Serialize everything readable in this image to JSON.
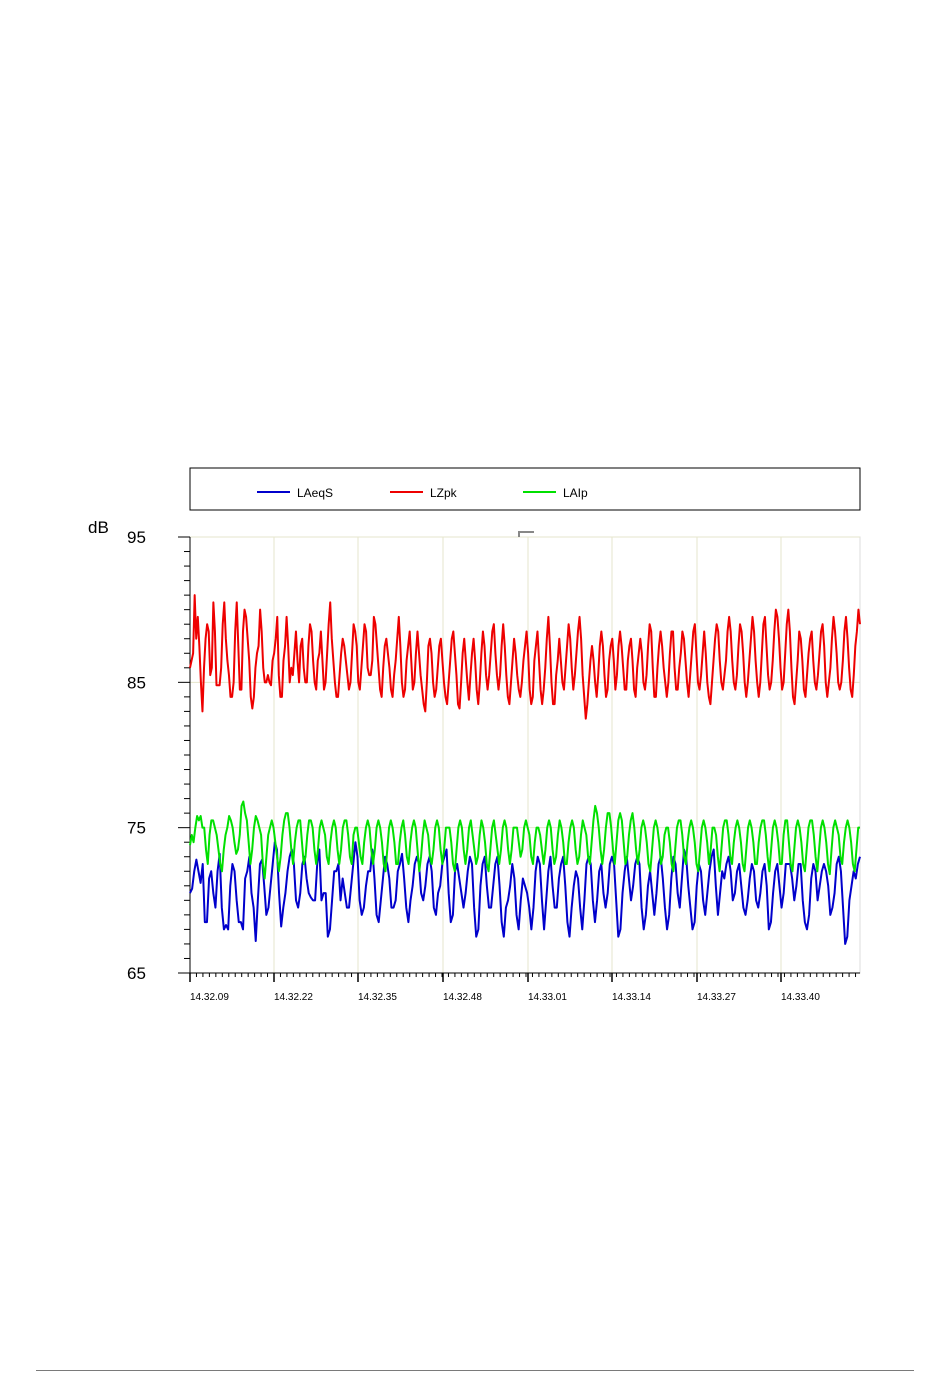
{
  "chart_data": {
    "type": "line",
    "ylabel": "dB",
    "ylim": [
      65,
      95
    ],
    "yticks": [
      "95",
      "85",
      "75",
      "65"
    ],
    "x_ticks": [
      "14.32.09",
      "14.32.22",
      "14.32.35",
      "14.32.48",
      "14.33.01",
      "14.33.14",
      "14.33.27",
      "14.33.40"
    ],
    "x_start": "14.32.09",
    "x_end": "14.33.51",
    "grid": true,
    "legend_position": "top",
    "series": [
      {
        "name": "LAeqS",
        "color": "#0000cc",
        "values": [
          70.5,
          70.8,
          72.0,
          72.8,
          72.0,
          71.2,
          72.5,
          68.5,
          68.5,
          71.5,
          72.0,
          70.5,
          69.5,
          72.0,
          73.2,
          69.5,
          68.0,
          68.3,
          68.0,
          71.0,
          72.5,
          72.0,
          70.0,
          68.5,
          68.5,
          68.0,
          71.5,
          72.0,
          73.0,
          70.5,
          69.5,
          67.2,
          70.0,
          72.5,
          72.8,
          71.0,
          69.0,
          69.5,
          71.0,
          72.5,
          74.0,
          73.5,
          70.5,
          68.2,
          69.5,
          70.5,
          72.0,
          73.0,
          73.5,
          72.5,
          70.0,
          69.5,
          70.5,
          72.5,
          73.0,
          71.5,
          70.5,
          70.2,
          70.0,
          70.0,
          72.5,
          73.5,
          70.0,
          70.5,
          70.5,
          67.5,
          68.0,
          70.0,
          72.0,
          72.0,
          72.5,
          70.0,
          71.5,
          70.5,
          69.5,
          69.5,
          71.0,
          72.5,
          74.0,
          73.0,
          70.0,
          69.0,
          69.5,
          71.0,
          72.0,
          72.0,
          73.5,
          71.5,
          69.0,
          68.5,
          70.0,
          71.5,
          73.0,
          72.5,
          71.5,
          69.5,
          69.5,
          70.0,
          72.0,
          72.5,
          73.2,
          71.5,
          69.5,
          68.5,
          70.0,
          71.0,
          72.5,
          73.0,
          72.5,
          70.5,
          70.0,
          71.0,
          72.5,
          73.0,
          72.0,
          69.5,
          69.0,
          70.5,
          71.0,
          72.5,
          73.0,
          73.5,
          70.5,
          68.5,
          69.0,
          72.0,
          72.5,
          71.5,
          70.5,
          69.5,
          70.5,
          72.0,
          73.0,
          72.5,
          69.5,
          67.5,
          68.0,
          71.0,
          72.5,
          73.0,
          71.0,
          69.5,
          69.5,
          71.0,
          72.5,
          73.0,
          71.0,
          68.5,
          67.5,
          69.5,
          70.0,
          71.0,
          72.5,
          71.5,
          69.0,
          68.0,
          70.0,
          71.5,
          71.0,
          70.5,
          69.5,
          68.0,
          69.5,
          72.0,
          73.0,
          72.5,
          70.0,
          68.0,
          70.0,
          72.0,
          73.0,
          71.0,
          69.5,
          69.5,
          71.5,
          72.5,
          73.0,
          71.0,
          68.5,
          67.5,
          69.5,
          71.0,
          72.0,
          71.5,
          69.5,
          68.0,
          70.0,
          72.5,
          73.0,
          72.5,
          70.0,
          68.5,
          70.0,
          72.0,
          72.5,
          70.5,
          69.5,
          70.5,
          72.5,
          73.0,
          72.5,
          70.0,
          67.5,
          68.0,
          70.5,
          72.0,
          73.0,
          71.5,
          70.0,
          71.0,
          72.5,
          73.0,
          72.5,
          69.5,
          68.0,
          69.0,
          71.0,
          72.0,
          70.5,
          69.0,
          70.5,
          72.5,
          73.0,
          71.5,
          69.5,
          68.0,
          69.0,
          71.5,
          73.0,
          72.5,
          70.5,
          69.5,
          71.5,
          73.5,
          73.0,
          71.0,
          69.5,
          68.0,
          68.5,
          71.0,
          72.5,
          72.0,
          70.0,
          69.0,
          70.5,
          72.0,
          73.0,
          73.5,
          71.0,
          69.0,
          70.5,
          72.0,
          71.5,
          72.5,
          73.0,
          72.0,
          70.0,
          70.5,
          72.0,
          72.5,
          71.0,
          69.5,
          69.0,
          70.0,
          71.5,
          72.5,
          72.0,
          70.0,
          69.5,
          70.5,
          72.0,
          72.5,
          71.0,
          68.0,
          68.5,
          70.5,
          72.0,
          72.5,
          71.0,
          69.5,
          70.5,
          72.5,
          72.5,
          72.5,
          71.5,
          70.0,
          71.0,
          72.5,
          72.5,
          70.0,
          68.5,
          68.0,
          69.0,
          71.5,
          72.5,
          72.0,
          70.0,
          71.0,
          72.0,
          72.5,
          72.0,
          71.0,
          69.0,
          69.5,
          70.5,
          72.5,
          73.0,
          72.0,
          69.5,
          67.0,
          67.5,
          70.0,
          71.0,
          72.0,
          71.5,
          72.5,
          73.0
        ]
      },
      {
        "name": "LZpk",
        "color": "#ee0000",
        "values": [
          86.0,
          86.5,
          87.0,
          91.0,
          88.0,
          89.5,
          87.5,
          85.0,
          83.0,
          86.0,
          88.0,
          89.0,
          88.5,
          85.5,
          86.0,
          90.5,
          88.5,
          84.8,
          84.8,
          84.8,
          86.0,
          89.0,
          90.5,
          88.0,
          86.5,
          85.5,
          84.0,
          84.0,
          85.0,
          88.5,
          90.5,
          87.5,
          84.5,
          84.5,
          88.5,
          90.0,
          89.5,
          88.0,
          86.5,
          84.0,
          83.2,
          84.0,
          86.0,
          87.0,
          87.5,
          90.0,
          88.5,
          86.0,
          85.0,
          85.0,
          85.5,
          85.0,
          84.8,
          86.5,
          87.0,
          88.0,
          89.5,
          85.5,
          84.0,
          84.0,
          86.5,
          87.5,
          89.5,
          87.5,
          85.0,
          86.0,
          85.5,
          87.0,
          88.5,
          86.5,
          85.0,
          87.5,
          88.0,
          86.0,
          85.0,
          85.0,
          87.5,
          89.0,
          88.5,
          86.5,
          85.0,
          84.5,
          86.5,
          87.0,
          88.5,
          86.5,
          84.5,
          85.0,
          87.0,
          89.0,
          90.5,
          88.0,
          86.5,
          85.0,
          84.0,
          84.0,
          85.5,
          87.0,
          88.0,
          87.5,
          86.5,
          85.5,
          84.5,
          85.0,
          87.0,
          89.0,
          88.5,
          87.5,
          85.0,
          84.5,
          86.0,
          87.5,
          89.0,
          88.5,
          86.0,
          85.5,
          85.5,
          86.5,
          89.5,
          89.0,
          87.5,
          86.0,
          84.5,
          84.0,
          86.0,
          87.5,
          88.0,
          87.0,
          86.0,
          84.5,
          84.0,
          85.5,
          86.5,
          88.0,
          89.5,
          87.5,
          85.0,
          84.0,
          84.5,
          86.5,
          87.5,
          88.5,
          86.5,
          84.5,
          85.0,
          87.0,
          88.5,
          87.0,
          85.5,
          84.5,
          83.5,
          83.0,
          85.0,
          87.5,
          88.0,
          87.0,
          85.0,
          84.0,
          84.5,
          86.0,
          87.5,
          88.0,
          86.5,
          85.0,
          84.0,
          83.5,
          85.0,
          86.5,
          88.0,
          88.5,
          87.0,
          85.5,
          83.5,
          83.2,
          85.0,
          87.0,
          88.0,
          86.5,
          85.0,
          83.8,
          85.5,
          87.0,
          88.0,
          86.5,
          84.5,
          83.5,
          85.0,
          87.0,
          88.5,
          87.5,
          85.5,
          84.5,
          85.5,
          87.0,
          88.5,
          89.0,
          87.0,
          85.5,
          84.5,
          85.5,
          87.5,
          89.0,
          87.5,
          85.5,
          84.0,
          83.5,
          85.0,
          86.5,
          88.0,
          87.0,
          85.5,
          84.5,
          84.0,
          85.0,
          86.5,
          87.5,
          88.5,
          87.0,
          84.5,
          83.5,
          84.0,
          86.5,
          87.5,
          88.5,
          86.5,
          84.5,
          83.5,
          84.5,
          86.0,
          88.0,
          89.5,
          87.5,
          85.0,
          83.5,
          83.5,
          85.5,
          86.5,
          88.0,
          86.5,
          85.0,
          84.5,
          86.0,
          87.5,
          89.0,
          88.0,
          86.0,
          84.5,
          85.5,
          87.0,
          88.5,
          89.5,
          88.0,
          85.5,
          84.0,
          82.5,
          83.5,
          85.0,
          86.5,
          87.5,
          86.5,
          85.0,
          84.0,
          85.5,
          87.5,
          88.5,
          87.5,
          85.5,
          84.0,
          84.5,
          86.5,
          87.5,
          88.0,
          86.5,
          84.5,
          85.5,
          87.5,
          88.5,
          87.5,
          86.0,
          84.5,
          84.5,
          86.5,
          87.5,
          88.0,
          86.5,
          84.5,
          84.0,
          86.0,
          87.0,
          88.0,
          87.0,
          85.0,
          84.5,
          85.5,
          87.5,
          89.0,
          88.5,
          86.0,
          84.0,
          84.0,
          86.0,
          87.5,
          88.5,
          87.5,
          86.0,
          85.0,
          84.0,
          85.0,
          87.0,
          88.5,
          88.5,
          86.0,
          84.5,
          84.5,
          86.0,
          87.0,
          88.5,
          88.0,
          86.5,
          85.0,
          84.0,
          85.5,
          87.0,
          88.5,
          89.0,
          87.0,
          85.0,
          84.5,
          85.5,
          87.0,
          88.5,
          87.0,
          85.0,
          84.0,
          83.5,
          85.0,
          86.5,
          88.0,
          89.0,
          88.5,
          86.5,
          85.0,
          84.5,
          85.5,
          86.5,
          88.5,
          89.5,
          88.5,
          86.5,
          85.0,
          84.5,
          85.5,
          87.5,
          89.0,
          88.5,
          87.0,
          85.0,
          84.0,
          85.0,
          86.5,
          88.0,
          89.5,
          88.5,
          86.5,
          85.0,
          84.0,
          85.0,
          87.0,
          89.0,
          89.5,
          87.5,
          85.5,
          84.5,
          85.0,
          86.5,
          88.5,
          90.0,
          89.5,
          88.0,
          86.0,
          84.5,
          85.0,
          87.0,
          89.0,
          90.0,
          88.5,
          86.0,
          84.0,
          83.5,
          85.0,
          86.5,
          88.5,
          88.0,
          86.5,
          84.5,
          84.0,
          85.5,
          87.0,
          88.0,
          88.5,
          86.5,
          85.0,
          84.5,
          85.5,
          87.0,
          88.5,
          89.0,
          87.5,
          85.0,
          84.0,
          85.0,
          86.0,
          88.0,
          89.5,
          88.5,
          87.0,
          85.0,
          84.5,
          85.0,
          86.5,
          88.5,
          89.5,
          88.0,
          86.0,
          84.5,
          84.0,
          85.5,
          87.5,
          88.5,
          90.0,
          89.0
        ]
      },
      {
        "name": "LAIp",
        "color": "#00e000",
        "values": [
          73.8,
          74.5,
          74.0,
          75.0,
          75.8,
          75.5,
          75.8,
          75.0,
          75.0,
          73.5,
          72.5,
          74.5,
          75.5,
          75.5,
          75.0,
          74.5,
          73.5,
          72.5,
          72.0,
          73.5,
          74.5,
          75.0,
          75.8,
          75.5,
          75.0,
          74.0,
          73.2,
          73.5,
          74.5,
          76.5,
          76.8,
          76.0,
          75.5,
          74.0,
          72.5,
          73.5,
          75.0,
          75.8,
          75.5,
          75.0,
          74.5,
          72.5,
          71.5,
          73.0,
          74.5,
          75.0,
          75.5,
          75.0,
          74.0,
          73.0,
          72.0,
          73.0,
          74.5,
          75.5,
          76.0,
          76.0,
          75.0,
          73.5,
          72.5,
          74.0,
          75.0,
          75.5,
          75.5,
          74.0,
          72.5,
          73.0,
          74.5,
          75.5,
          75.5,
          75.0,
          73.5,
          72.5,
          73.5,
          75.0,
          75.5,
          75.0,
          74.5,
          73.0,
          72.5,
          74.0,
          75.0,
          75.5,
          75.0,
          73.5,
          72.5,
          73.5,
          75.0,
          75.5,
          75.5,
          74.5,
          73.0,
          72.5,
          74.5,
          75.0,
          75.0,
          74.0,
          73.0,
          72.5,
          74.0,
          75.0,
          75.5,
          75.0,
          73.5,
          72.5,
          73.5,
          75.0,
          75.5,
          75.0,
          74.0,
          72.5,
          72.0,
          73.5,
          75.0,
          75.5,
          75.0,
          74.0,
          72.5,
          72.5,
          74.0,
          75.0,
          75.5,
          74.5,
          73.0,
          72.5,
          74.0,
          75.0,
          75.5,
          75.0,
          73.5,
          72.0,
          73.0,
          74.5,
          75.5,
          75.0,
          74.5,
          73.0,
          72.5,
          73.5,
          75.0,
          75.5,
          75.0,
          73.5,
          72.5,
          73.5,
          75.0,
          75.0,
          75.0,
          74.0,
          72.5,
          72.0,
          73.5,
          75.0,
          75.5,
          75.0,
          73.5,
          72.5,
          73.5,
          75.0,
          75.5,
          74.5,
          73.5,
          72.5,
          73.0,
          74.5,
          75.5,
          75.0,
          74.0,
          72.5,
          72.0,
          73.5,
          75.0,
          75.5,
          74.5,
          73.5,
          72.5,
          73.5,
          75.0,
          75.5,
          75.0,
          73.5,
          72.5,
          73.5,
          75.0,
          75.0,
          75.0,
          74.0,
          73.0,
          73.5,
          75.0,
          75.5,
          75.0,
          74.5,
          73.0,
          72.5,
          74.0,
          75.0,
          75.0,
          74.5,
          73.5,
          72.5,
          73.5,
          75.0,
          75.5,
          75.0,
          73.5,
          72.5,
          73.0,
          74.5,
          75.5,
          75.0,
          74.0,
          72.5,
          72.5,
          74.0,
          75.0,
          75.5,
          75.0,
          73.5,
          72.5,
          73.0,
          74.5,
          75.5,
          75.0,
          74.5,
          73.0,
          72.5,
          74.0,
          75.5,
          76.5,
          76.0,
          75.0,
          73.5,
          72.5,
          73.5,
          75.0,
          76.0,
          76.0,
          75.0,
          73.5,
          72.5,
          74.0,
          75.5,
          76.0,
          75.5,
          74.0,
          72.5,
          73.0,
          74.5,
          75.5,
          76.0,
          75.0,
          73.5,
          72.5,
          73.5,
          75.0,
          75.5,
          75.0,
          74.0,
          72.5,
          72.0,
          73.5,
          75.0,
          75.5,
          75.0,
          74.0,
          72.5,
          73.0,
          74.5,
          75.0,
          75.0,
          74.0,
          72.5,
          72.0,
          73.5,
          75.0,
          75.5,
          75.5,
          74.5,
          73.0,
          72.5,
          74.0,
          75.0,
          75.5,
          75.0,
          74.0,
          72.5,
          72.0,
          73.5,
          75.0,
          75.5,
          75.0,
          74.0,
          72.5,
          73.5,
          75.0,
          75.0,
          74.5,
          73.0,
          72.0,
          73.5,
          75.0,
          75.5,
          75.5,
          74.5,
          73.0,
          72.5,
          74.0,
          75.0,
          75.5,
          75.0,
          74.0,
          72.5,
          72.0,
          73.5,
          75.0,
          75.5,
          75.0,
          74.0,
          72.5,
          72.5,
          74.0,
          75.0,
          75.5,
          75.5,
          74.5,
          73.0,
          72.0,
          73.5,
          75.0,
          75.5,
          75.0,
          74.0,
          72.5,
          72.5,
          74.5,
          75.5,
          75.5,
          74.0,
          72.5,
          72.0,
          73.5,
          75.0,
          75.5,
          75.0,
          74.0,
          72.5,
          72.0,
          73.5,
          75.0,
          75.5,
          75.5,
          74.5,
          73.0,
          72.0,
          73.5,
          75.0,
          75.5,
          75.0,
          74.0,
          72.5,
          71.8,
          73.5,
          75.0,
          75.5,
          75.0,
          74.5,
          73.0,
          72.5,
          74.0,
          75.0,
          75.5,
          75.0,
          74.0,
          72.5,
          72.0,
          73.5,
          75.0,
          75.0
        ]
      }
    ]
  }
}
